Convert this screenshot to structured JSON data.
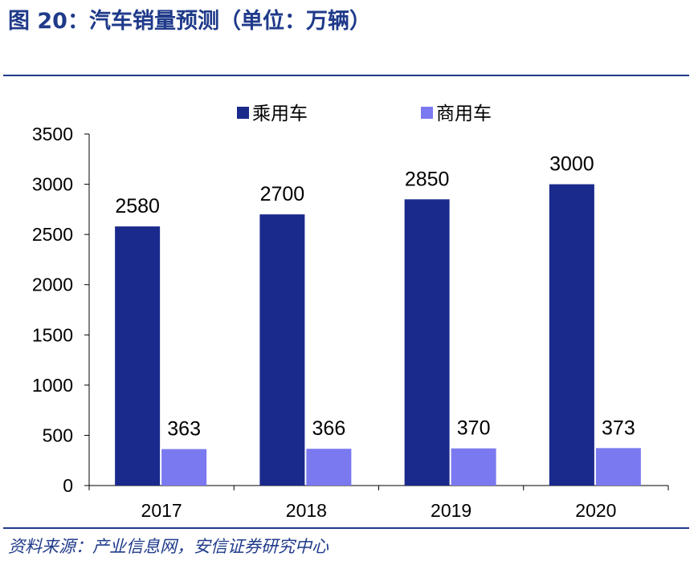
{
  "figure": {
    "title": "图 20：汽车销量预测（单位：万辆）",
    "source": "资料来源：产业信息网，安信证券研究中心"
  },
  "colors": {
    "title": "#1f3a8a",
    "rule": "#1f3a8a",
    "series_passenger": "#1a2a8c",
    "series_commercial": "#7b79f0",
    "axis": "#000000"
  },
  "chart_data": {
    "type": "bar",
    "categories": [
      "2017",
      "2018",
      "2019",
      "2020"
    ],
    "series": [
      {
        "name": "乘用车",
        "values": [
          2580,
          2700,
          2850,
          3000
        ],
        "color": "#1a2a8c"
      },
      {
        "name": "商用车",
        "values": [
          363,
          366,
          370,
          373
        ],
        "color": "#7b79f0"
      }
    ],
    "ylim": [
      0,
      3500
    ],
    "yticks": [
      0,
      500,
      1000,
      1500,
      2000,
      2500,
      3000,
      3500
    ],
    "legend_position": "top-center",
    "grid": false,
    "data_labels": true
  }
}
